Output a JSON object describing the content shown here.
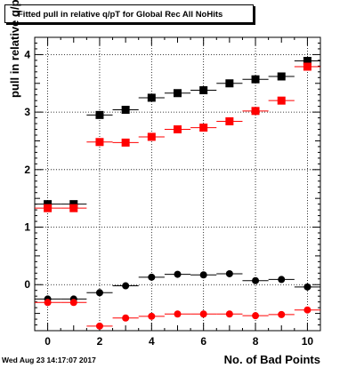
{
  "chart_data": {
    "type": "scatter",
    "title": "Fitted pull in relative q/pT for Global Rec All NoHits",
    "xlabel": "No. of Bad Points",
    "ylabel": "pull in relative q/pT",
    "xlim": [
      -0.5,
      10.5
    ],
    "ylim": [
      -0.8,
      4.3
    ],
    "x_ticks": [
      "0",
      "2",
      "4",
      "6",
      "8",
      "10"
    ],
    "y_ticks": [
      "0",
      "1",
      "2",
      "3",
      "4"
    ],
    "grid": true,
    "x_error": 0.5,
    "series": [
      {
        "marker": "square",
        "color": "#000000",
        "points": [
          [
            0,
            1.4
          ],
          [
            1,
            1.4
          ],
          [
            2,
            2.95
          ],
          [
            3,
            3.04
          ],
          [
            4,
            3.25
          ],
          [
            5,
            3.33
          ],
          [
            6,
            3.38
          ],
          [
            7,
            3.5
          ],
          [
            8,
            3.57
          ],
          [
            9,
            3.62
          ],
          [
            10,
            3.89
          ]
        ]
      },
      {
        "marker": "square",
        "color": "#ff0000",
        "points": [
          [
            0,
            1.33
          ],
          [
            1,
            1.33
          ],
          [
            2,
            2.48
          ],
          [
            3,
            2.47
          ],
          [
            4,
            2.57
          ],
          [
            5,
            2.7
          ],
          [
            6,
            2.73
          ],
          [
            7,
            2.84
          ],
          [
            8,
            3.02
          ],
          [
            9,
            3.2
          ],
          [
            10,
            3.79
          ]
        ]
      },
      {
        "marker": "circle",
        "color": "#000000",
        "points": [
          [
            0,
            -0.25
          ],
          [
            1,
            -0.25
          ],
          [
            2,
            -0.14
          ],
          [
            3,
            -0.02
          ],
          [
            4,
            0.13
          ],
          [
            5,
            0.18
          ],
          [
            6,
            0.17
          ],
          [
            7,
            0.19
          ],
          [
            8,
            0.07
          ],
          [
            9,
            0.09
          ],
          [
            10,
            -0.04
          ]
        ]
      },
      {
        "marker": "circle",
        "color": "#ff0000",
        "points": [
          [
            0,
            -0.31
          ],
          [
            1,
            -0.31
          ],
          [
            2,
            -0.72
          ],
          [
            3,
            -0.58
          ],
          [
            4,
            -0.55
          ],
          [
            5,
            -0.51
          ],
          [
            6,
            -0.51
          ],
          [
            7,
            -0.51
          ],
          [
            8,
            -0.54
          ],
          [
            9,
            -0.52
          ],
          [
            10,
            -0.44
          ]
        ]
      }
    ]
  },
  "footer": {
    "timestamp": "Wed Aug 23 14:17:07 2017"
  }
}
